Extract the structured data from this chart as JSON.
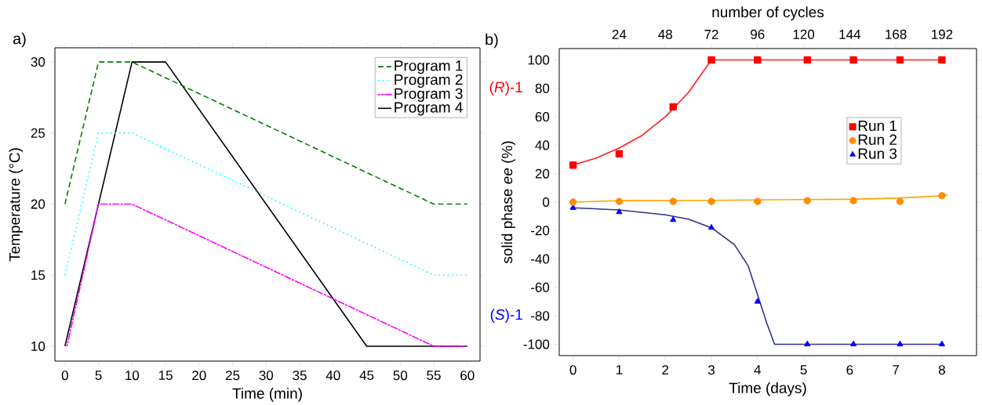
{
  "chart_data": [
    {
      "type": "line",
      "xlabel": "Time (min)",
      "ylabel": "Temperature (°C)",
      "xlim": [
        -1.5,
        61.9
      ],
      "ylim": [
        8.95,
        31
      ],
      "xticks": [
        0,
        5,
        10,
        15,
        20,
        25,
        30,
        35,
        40,
        45,
        50,
        55,
        60
      ],
      "yticks": [
        10,
        15,
        20,
        25,
        30
      ],
      "legend": "top right",
      "annotations": [
        "a)"
      ],
      "series": [
        {
          "name": "Program 1",
          "color": "#008000",
          "line_style": "dashed",
          "x": [
            0,
            5,
            10,
            55,
            60
          ],
          "values": [
            20,
            30,
            30,
            20,
            20
          ]
        },
        {
          "name": "Program 2",
          "color": "#00ffff",
          "line_style": "dotted",
          "x": [
            0,
            5,
            10,
            55,
            60
          ],
          "values": [
            15,
            25,
            25,
            15,
            15
          ]
        },
        {
          "name": "Program 3",
          "color": "#ff00ff",
          "line_style": "dashdot",
          "x": [
            0.3,
            5,
            10,
            55,
            60
          ],
          "values": [
            10,
            20,
            20,
            10,
            10
          ]
        },
        {
          "name": "Program 4",
          "color": "#000000",
          "line_style": "solid",
          "x": [
            0,
            10,
            15,
            45,
            60
          ],
          "values": [
            10,
            30,
            30,
            10,
            10
          ]
        }
      ]
    },
    {
      "type": "scatter",
      "xlabel": "Time (days)",
      "ylabel": "solid phase *ee* (%)",
      "x2label": "number of cycles",
      "xlim": [
        -0.3,
        8.75
      ],
      "ylim": [
        -108,
        108
      ],
      "x2lim": [
        -7.2,
        210
      ],
      "xticks": [
        0,
        1,
        2,
        3,
        4,
        5,
        6,
        7,
        8
      ],
      "yticks": [
        -100,
        -80,
        -60,
        -40,
        -20,
        0,
        20,
        40,
        60,
        80,
        100
      ],
      "x2ticks": [
        24,
        48,
        72,
        96,
        120,
        144,
        168,
        192
      ],
      "legend": "right",
      "annotations": [
        "b)",
        "(*R*)-1",
        "(*S*)-1"
      ],
      "x": [
        0,
        1,
        2.17,
        3,
        4,
        5.08,
        6.08,
        7.09,
        8
      ],
      "series": [
        {
          "name": "Run 1",
          "color": "#ff0000",
          "marker": "square",
          "values": [
            26,
            34,
            67,
            100,
            100,
            100,
            100,
            100,
            100
          ]
        },
        {
          "name": "Run 2",
          "color": "#ff8c00",
          "marker": "circle",
          "values": [
            0,
            0.5,
            0.5,
            0.5,
            0.5,
            1,
            1,
            0.5,
            4.5
          ]
        },
        {
          "name": "Run 3",
          "color": "#0000ff",
          "marker": "triangle",
          "values": [
            -4,
            -7,
            -12.5,
            -18,
            -70,
            -100,
            -100,
            -100,
            -100
          ]
        },
        {
          "type": "line",
          "color": "#ff2020",
          "x": [
            0,
            0.5,
            1,
            1.5,
            2,
            2.5,
            3,
            8
          ],
          "values": [
            26,
            31,
            38,
            47,
            60,
            77,
            100,
            100
          ]
        },
        {
          "type": "line",
          "color": "#ffa500",
          "x": [
            0,
            1,
            3,
            5,
            6,
            7,
            7.5,
            8,
            8.12
          ],
          "values": [
            0,
            1,
            1.2,
            1.8,
            2,
            2.8,
            3.5,
            4.5,
            5
          ]
        },
        {
          "type": "line",
          "color": "#2e3192",
          "x": [
            0,
            1,
            2,
            2.5,
            3,
            3.5,
            3.8,
            4,
            4.2,
            4.37,
            8
          ],
          "values": [
            -4,
            -5.5,
            -9,
            -12,
            -18,
            -30,
            -45,
            -65,
            -85,
            -100,
            -100
          ]
        }
      ]
    }
  ]
}
